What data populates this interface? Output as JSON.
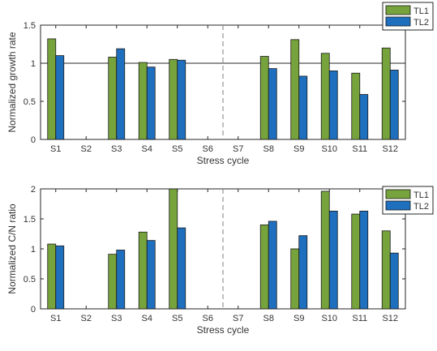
{
  "chart_data": [
    {
      "type": "bar",
      "categories": [
        "S1",
        "S2",
        "S3",
        "S4",
        "S5",
        "S6",
        "S7",
        "S8",
        "S9",
        "S10",
        "S11",
        "S12"
      ],
      "series": [
        {
          "name": "TL1",
          "color": "#77a33c",
          "values": [
            1.32,
            null,
            1.08,
            1.01,
            1.05,
            null,
            null,
            1.09,
            1.31,
            1.13,
            0.87,
            1.2
          ]
        },
        {
          "name": "TL2",
          "color": "#1f6fbf",
          "values": [
            1.1,
            null,
            1.19,
            0.95,
            1.04,
            null,
            null,
            0.93,
            0.83,
            0.9,
            0.59,
            0.91
          ]
        }
      ],
      "xlabel": "Stress cycle",
      "ylabel": "Normalized growth rate",
      "ylim": [
        0,
        1.5
      ],
      "yticks": [
        "0",
        "0.5",
        "1",
        "1.5"
      ],
      "reference_line_y": 1,
      "divider_after_category": "S6",
      "legend_position": "top-right, outside"
    },
    {
      "type": "bar",
      "categories": [
        "S1",
        "S2",
        "S3",
        "S4",
        "S5",
        "S6",
        "S7",
        "S8",
        "S9",
        "S10",
        "S11",
        "S12"
      ],
      "series": [
        {
          "name": "TL1",
          "color": "#77a33c",
          "values": [
            1.08,
            null,
            0.91,
            1.28,
            2.02,
            null,
            null,
            1.4,
            1.0,
            1.96,
            1.58,
            1.3
          ]
        },
        {
          "name": "TL2",
          "color": "#1f6fbf",
          "values": [
            1.05,
            null,
            0.98,
            1.14,
            1.35,
            null,
            null,
            1.46,
            1.22,
            1.63,
            1.63,
            0.93
          ]
        }
      ],
      "xlabel": "Stress cycle",
      "ylabel": "Normalized C/N ratio",
      "ylim": [
        0,
        2
      ],
      "yticks": [
        "0",
        "0.5",
        "1",
        "1.5",
        "2"
      ],
      "divider_after_category": "S6",
      "legend_position": "top-right, outside"
    }
  ]
}
